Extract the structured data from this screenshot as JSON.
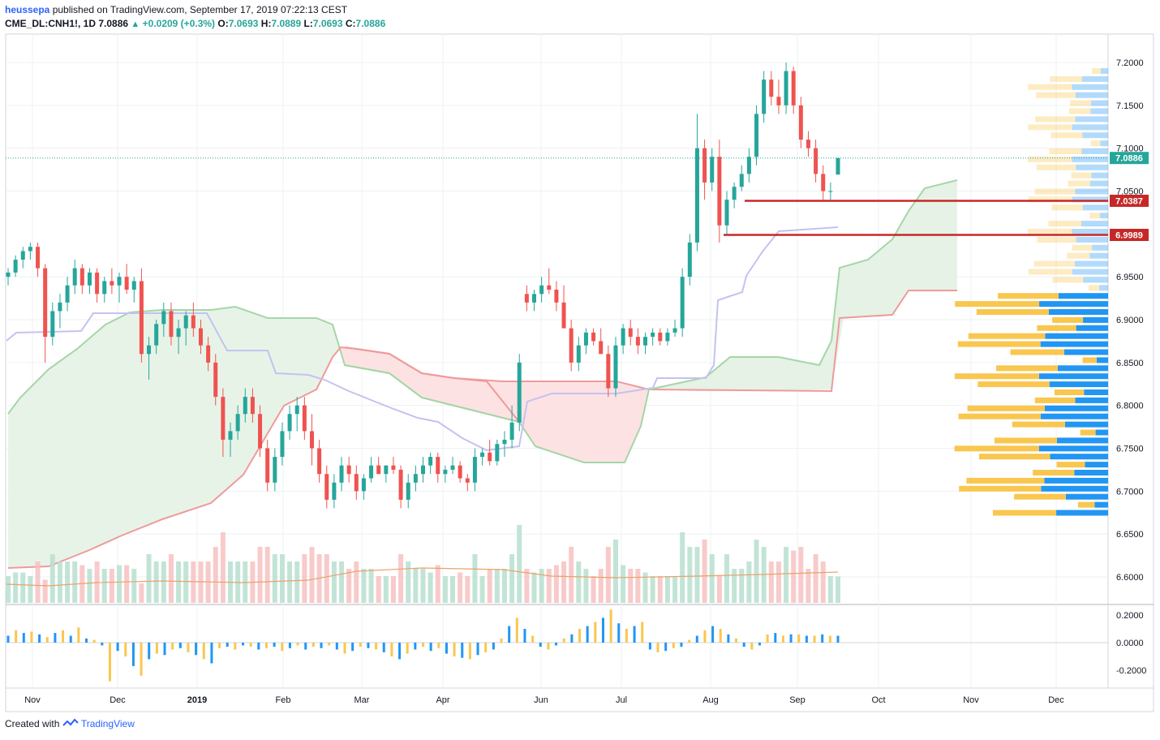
{
  "header": {
    "author": "heussepa",
    "published_text": "published on TradingView.com, September 17, 2019 07:22:13 CEST",
    "symbol": "CME_DL:CNH1!, 1D",
    "last": "7.0886",
    "change": "+0.0209 (+0.3%)",
    "o_label": "O:",
    "o_value": "7.0693",
    "h_label": "H:",
    "h_value": "7.0889",
    "l_label": "L:",
    "l_value": "7.0693",
    "c_label": "C:",
    "c_value": "7.0886"
  },
  "footer": {
    "created_with": "Created with",
    "brand": "TradingView"
  },
  "colors": {
    "up": "#26a69a",
    "down": "#ef5350",
    "cloud_bull": "#e3f1e4",
    "cloud_bear": "#fde2e3",
    "line_level": "#c62828",
    "price_tag": "#26a69a",
    "vp_up": "#2196f3",
    "vp_down": "#f9c74f"
  },
  "chart_data": {
    "type": "candlestick",
    "y_ticks": [
      "7.2000",
      "7.1500",
      "7.1000",
      "7.0500",
      "6.9500",
      "6.9000",
      "6.8500",
      "6.8000",
      "6.7500",
      "6.7000",
      "6.6500",
      "6.6000"
    ],
    "ylim": [
      6.575,
      7.225
    ],
    "x_ticks": [
      "Nov",
      "Dec",
      "2019",
      "Feb",
      "Mar",
      "Apr",
      "Jun",
      "Jul",
      "Aug",
      "Sep",
      "Oct",
      "Nov",
      "Dec"
    ],
    "price_labels": {
      "last": "7.0886",
      "level_1": "7.0387",
      "level_2": "6.9989"
    },
    "levels": [
      7.0387,
      6.9989
    ],
    "osc_ticks": [
      "0.2000",
      "0.0000",
      "-0.2000"
    ],
    "osc_ylim": [
      -0.3,
      0.26
    ],
    "candles_ohlc": [
      [
        6.95,
        6.96,
        6.94,
        6.955
      ],
      [
        6.955,
        6.975,
        6.95,
        6.97
      ],
      [
        6.97,
        6.985,
        6.96,
        6.98
      ],
      [
        6.98,
        6.99,
        6.97,
        6.985
      ],
      [
        6.985,
        6.99,
        6.95,
        6.96
      ],
      [
        6.96,
        6.965,
        6.85,
        6.88
      ],
      [
        6.88,
        6.92,
        6.87,
        6.91
      ],
      [
        6.91,
        6.93,
        6.89,
        6.92
      ],
      [
        6.92,
        6.95,
        6.91,
        6.94
      ],
      [
        6.94,
        6.97,
        6.93,
        6.96
      ],
      [
        6.96,
        6.965,
        6.93,
        6.94
      ],
      [
        6.94,
        6.96,
        6.93,
        6.955
      ],
      [
        6.955,
        6.96,
        6.92,
        6.93
      ],
      [
        6.93,
        6.95,
        6.92,
        6.945
      ],
      [
        6.945,
        6.96,
        6.93,
        6.94
      ],
      [
        6.94,
        6.955,
        6.92,
        6.95
      ],
      [
        6.95,
        6.965,
        6.93,
        6.935
      ],
      [
        6.935,
        6.95,
        6.92,
        6.945
      ],
      [
        6.945,
        6.96,
        6.85,
        6.86
      ],
      [
        6.86,
        6.88,
        6.83,
        6.87
      ],
      [
        6.87,
        6.9,
        6.86,
        6.895
      ],
      [
        6.895,
        6.92,
        6.88,
        6.91
      ],
      [
        6.91,
        6.92,
        6.87,
        6.88
      ],
      [
        6.88,
        6.9,
        6.86,
        6.89
      ],
      [
        6.89,
        6.91,
        6.87,
        6.905
      ],
      [
        6.905,
        6.92,
        6.88,
        6.89
      ],
      [
        6.89,
        6.9,
        6.86,
        6.87
      ],
      [
        6.87,
        6.88,
        6.84,
        6.85
      ],
      [
        6.85,
        6.86,
        6.8,
        6.81
      ],
      [
        6.81,
        6.82,
        6.74,
        6.76
      ],
      [
        6.76,
        6.78,
        6.74,
        6.77
      ],
      [
        6.77,
        6.8,
        6.76,
        6.79
      ],
      [
        6.79,
        6.82,
        6.78,
        6.81
      ],
      [
        6.81,
        6.82,
        6.78,
        6.79
      ],
      [
        6.79,
        6.8,
        6.74,
        6.75
      ],
      [
        6.75,
        6.76,
        6.7,
        6.71
      ],
      [
        6.71,
        6.75,
        6.7,
        6.74
      ],
      [
        6.74,
        6.78,
        6.73,
        6.77
      ],
      [
        6.77,
        6.8,
        6.76,
        6.79
      ],
      [
        6.79,
        6.81,
        6.77,
        6.8
      ],
      [
        6.8,
        6.81,
        6.76,
        6.77
      ],
      [
        6.77,
        6.79,
        6.73,
        6.75
      ],
      [
        6.75,
        6.76,
        6.71,
        6.72
      ],
      [
        6.72,
        6.73,
        6.68,
        6.69
      ],
      [
        6.69,
        6.72,
        6.68,
        6.71
      ],
      [
        6.71,
        6.74,
        6.7,
        6.73
      ],
      [
        6.73,
        6.74,
        6.71,
        6.72
      ],
      [
        6.72,
        6.73,
        6.69,
        6.7
      ],
      [
        6.7,
        6.72,
        6.69,
        6.715
      ],
      [
        6.715,
        6.74,
        6.71,
        6.73
      ],
      [
        6.73,
        6.74,
        6.72,
        6.72
      ],
      [
        6.72,
        6.73,
        6.71,
        6.73
      ],
      [
        6.73,
        6.74,
        6.72,
        6.725
      ],
      [
        6.725,
        6.73,
        6.68,
        6.69
      ],
      [
        6.69,
        6.72,
        6.68,
        6.71
      ],
      [
        6.71,
        6.73,
        6.7,
        6.72
      ],
      [
        6.72,
        6.74,
        6.71,
        6.73
      ],
      [
        6.73,
        6.745,
        6.72,
        6.74
      ],
      [
        6.74,
        6.745,
        6.71,
        6.72
      ],
      [
        6.72,
        6.73,
        6.71,
        6.725
      ],
      [
        6.725,
        6.74,
        6.72,
        6.73
      ],
      [
        6.73,
        6.735,
        6.71,
        6.715
      ],
      [
        6.715,
        6.72,
        6.7,
        6.71
      ],
      [
        6.71,
        6.75,
        6.7,
        6.74
      ],
      [
        6.74,
        6.75,
        6.73,
        6.745
      ],
      [
        6.745,
        6.76,
        6.73,
        6.735
      ],
      [
        6.735,
        6.76,
        6.73,
        6.755
      ],
      [
        6.755,
        6.77,
        6.74,
        6.76
      ],
      [
        6.76,
        6.8,
        6.75,
        6.78
      ],
      [
        6.78,
        6.86,
        6.77,
        6.85
      ],
      [
        6.93,
        6.94,
        6.91,
        6.92
      ],
      [
        6.92,
        6.935,
        6.91,
        6.93
      ],
      [
        6.93,
        6.95,
        6.92,
        6.94
      ],
      [
        6.94,
        6.96,
        6.93,
        6.935
      ],
      [
        6.935,
        6.945,
        6.91,
        6.92
      ],
      [
        6.92,
        6.94,
        6.9,
        6.89
      ],
      [
        6.89,
        6.9,
        6.84,
        6.85
      ],
      [
        6.85,
        6.88,
        6.84,
        6.87
      ],
      [
        6.87,
        6.89,
        6.86,
        6.885
      ],
      [
        6.885,
        6.89,
        6.87,
        6.875
      ],
      [
        6.875,
        6.89,
        6.86,
        6.86
      ],
      [
        6.86,
        6.87,
        6.81,
        6.82
      ],
      [
        6.82,
        6.88,
        6.81,
        6.87
      ],
      [
        6.87,
        6.895,
        6.86,
        6.89
      ],
      [
        6.89,
        6.9,
        6.87,
        6.88
      ],
      [
        6.88,
        6.89,
        6.86,
        6.87
      ],
      [
        6.87,
        6.885,
        6.86,
        6.88
      ],
      [
        6.88,
        6.89,
        6.87,
        6.885
      ],
      [
        6.885,
        6.89,
        6.87,
        6.875
      ],
      [
        6.875,
        6.89,
        6.87,
        6.885
      ],
      [
        6.885,
        6.9,
        6.88,
        6.89
      ],
      [
        6.89,
        6.96,
        6.88,
        6.95
      ],
      [
        6.95,
        7.0,
        6.94,
        6.99
      ],
      [
        6.99,
        7.14,
        6.98,
        7.1
      ],
      [
        7.1,
        7.11,
        7.04,
        7.06
      ],
      [
        7.06,
        7.1,
        7.05,
        7.09
      ],
      [
        7.09,
        7.11,
        6.99,
        7.01
      ],
      [
        7.01,
        7.05,
        7.0,
        7.04
      ],
      [
        7.04,
        7.06,
        7.03,
        7.055
      ],
      [
        7.055,
        7.08,
        7.05,
        7.07
      ],
      [
        7.07,
        7.1,
        7.06,
        7.09
      ],
      [
        7.09,
        7.15,
        7.08,
        7.14
      ],
      [
        7.14,
        7.19,
        7.13,
        7.18
      ],
      [
        7.18,
        7.19,
        7.15,
        7.16
      ],
      [
        7.16,
        7.18,
        7.14,
        7.15
      ],
      [
        7.15,
        7.2,
        7.14,
        7.19
      ],
      [
        7.19,
        7.195,
        7.14,
        7.15
      ],
      [
        7.15,
        7.16,
        7.1,
        7.11
      ],
      [
        7.11,
        7.12,
        7.09,
        7.1
      ],
      [
        7.1,
        7.11,
        7.06,
        7.07
      ],
      [
        7.07,
        7.08,
        7.04,
        7.05
      ],
      [
        7.05,
        7.06,
        7.04,
        7.05
      ],
      [
        7.0693,
        7.0889,
        7.0693,
        7.0886
      ]
    ],
    "osc_values": [
      0.05,
      0.09,
      0.07,
      0.08,
      0.06,
      0.04,
      0.07,
      0.09,
      0.05,
      0.11,
      0.03,
      0.02,
      -0.02,
      -0.28,
      -0.06,
      -0.1,
      -0.17,
      -0.24,
      -0.12,
      -0.08,
      -0.09,
      -0.05,
      -0.04,
      -0.07,
      -0.09,
      -0.12,
      -0.15,
      -0.04,
      -0.03,
      -0.05,
      -0.02,
      -0.03,
      -0.05,
      -0.04,
      -0.03,
      -0.06,
      -0.04,
      -0.02,
      -0.05,
      -0.03,
      -0.04,
      -0.02,
      -0.05,
      -0.08,
      -0.06,
      -0.03,
      -0.04,
      -0.05,
      -0.07,
      -0.1,
      -0.12,
      -0.08,
      -0.05,
      -0.03,
      -0.06,
      -0.04,
      -0.08,
      -0.1,
      -0.11,
      -0.12,
      -0.09,
      -0.07,
      -0.05,
      0.03,
      0.12,
      0.18,
      0.1,
      0.05,
      -0.03,
      -0.05,
      -0.02,
      0.03,
      0.06,
      0.1,
      0.12,
      0.15,
      0.18,
      0.24,
      0.14,
      0.1,
      0.12,
      0.15,
      -0.05,
      -0.07,
      -0.06,
      -0.04,
      -0.03,
      0.02,
      0.05,
      0.09,
      0.12,
      0.1,
      0.06,
      0.03,
      -0.03,
      -0.05,
      -0.02,
      0.06,
      0.07,
      0.05,
      0.06,
      0.06,
      0.05,
      0.05,
      0.06,
      0.05,
      0.05
    ]
  }
}
